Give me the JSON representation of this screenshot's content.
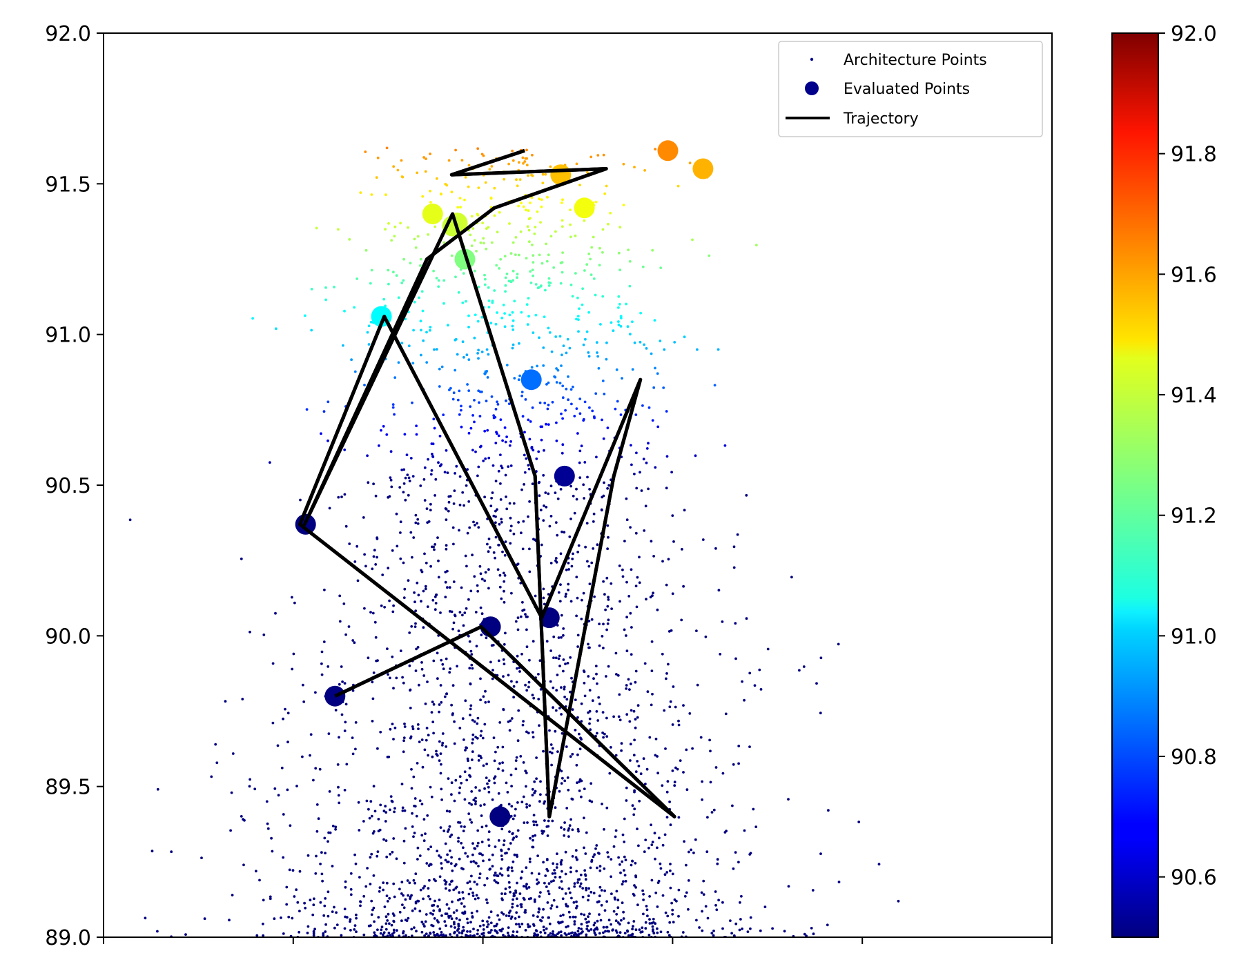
{
  "chart_data": {
    "type": "scatter",
    "title": "",
    "xlabel": "",
    "ylabel": "",
    "ylim": [
      89.0,
      92.0
    ],
    "yticks": [
      "89.0",
      "89.5",
      "90.0",
      "90.5",
      "91.0",
      "91.5",
      "92.0"
    ],
    "xtick_count": 6,
    "x_tick_labels_shown": false,
    "colorbar": {
      "colormap": "jet",
      "range": [
        90.5,
        92.0
      ],
      "ticks": [
        "90.6",
        "90.8",
        "91.0",
        "91.2",
        "91.4",
        "91.6",
        "91.8",
        "92.0"
      ]
    },
    "legend": {
      "placement": "top-right",
      "entries": [
        {
          "label": "Architecture Points",
          "marker": "small-dot",
          "color": "#00008b"
        },
        {
          "label": "Evaluated Points",
          "marker": "large-dot",
          "color": "#00008b"
        },
        {
          "label": "Trajectory",
          "marker": "line",
          "color": "#000000"
        }
      ]
    },
    "architecture_points": {
      "description_of_distribution": "dense cloud; densest near x≈0.42, y≈89.0–89.5; thinning upward to ≈91.6",
      "count_approx": 3000
    },
    "evaluated_points": {
      "x": [
        0.244,
        0.293,
        0.381,
        0.373,
        0.507,
        0.482,
        0.632,
        0.595,
        0.213,
        0.408,
        0.47,
        0.347,
        0.418,
        0.486,
        0.451,
        0.368
      ],
      "y": [
        89.8,
        91.06,
        91.25,
        91.37,
        91.42,
        91.53,
        91.55,
        91.61,
        90.37,
        90.03,
        90.06,
        91.4,
        89.4,
        90.53,
        90.85,
        91.36
      ],
      "accuracy": [
        89.8,
        91.06,
        91.25,
        91.37,
        91.42,
        91.53,
        91.55,
        91.61,
        90.37,
        90.03,
        90.06,
        91.4,
        89.4,
        90.53,
        90.85,
        91.36
      ]
    },
    "trajectory": {
      "x": [
        0.244,
        0.398,
        0.602,
        0.207,
        0.296,
        0.462,
        0.566,
        0.538,
        0.47,
        0.455,
        0.368,
        0.212,
        0.341,
        0.412,
        0.53,
        0.367,
        0.444
      ],
      "y": [
        89.8,
        90.03,
        89.4,
        90.37,
        91.06,
        90.06,
        90.85,
        90.53,
        89.4,
        90.53,
        91.4,
        90.37,
        91.25,
        91.42,
        91.55,
        91.53,
        91.61
      ]
    }
  },
  "labels": {
    "legend_architecture": "Architecture Points",
    "legend_evaluated": "Evaluated Points",
    "legend_trajectory": "Trajectory"
  }
}
